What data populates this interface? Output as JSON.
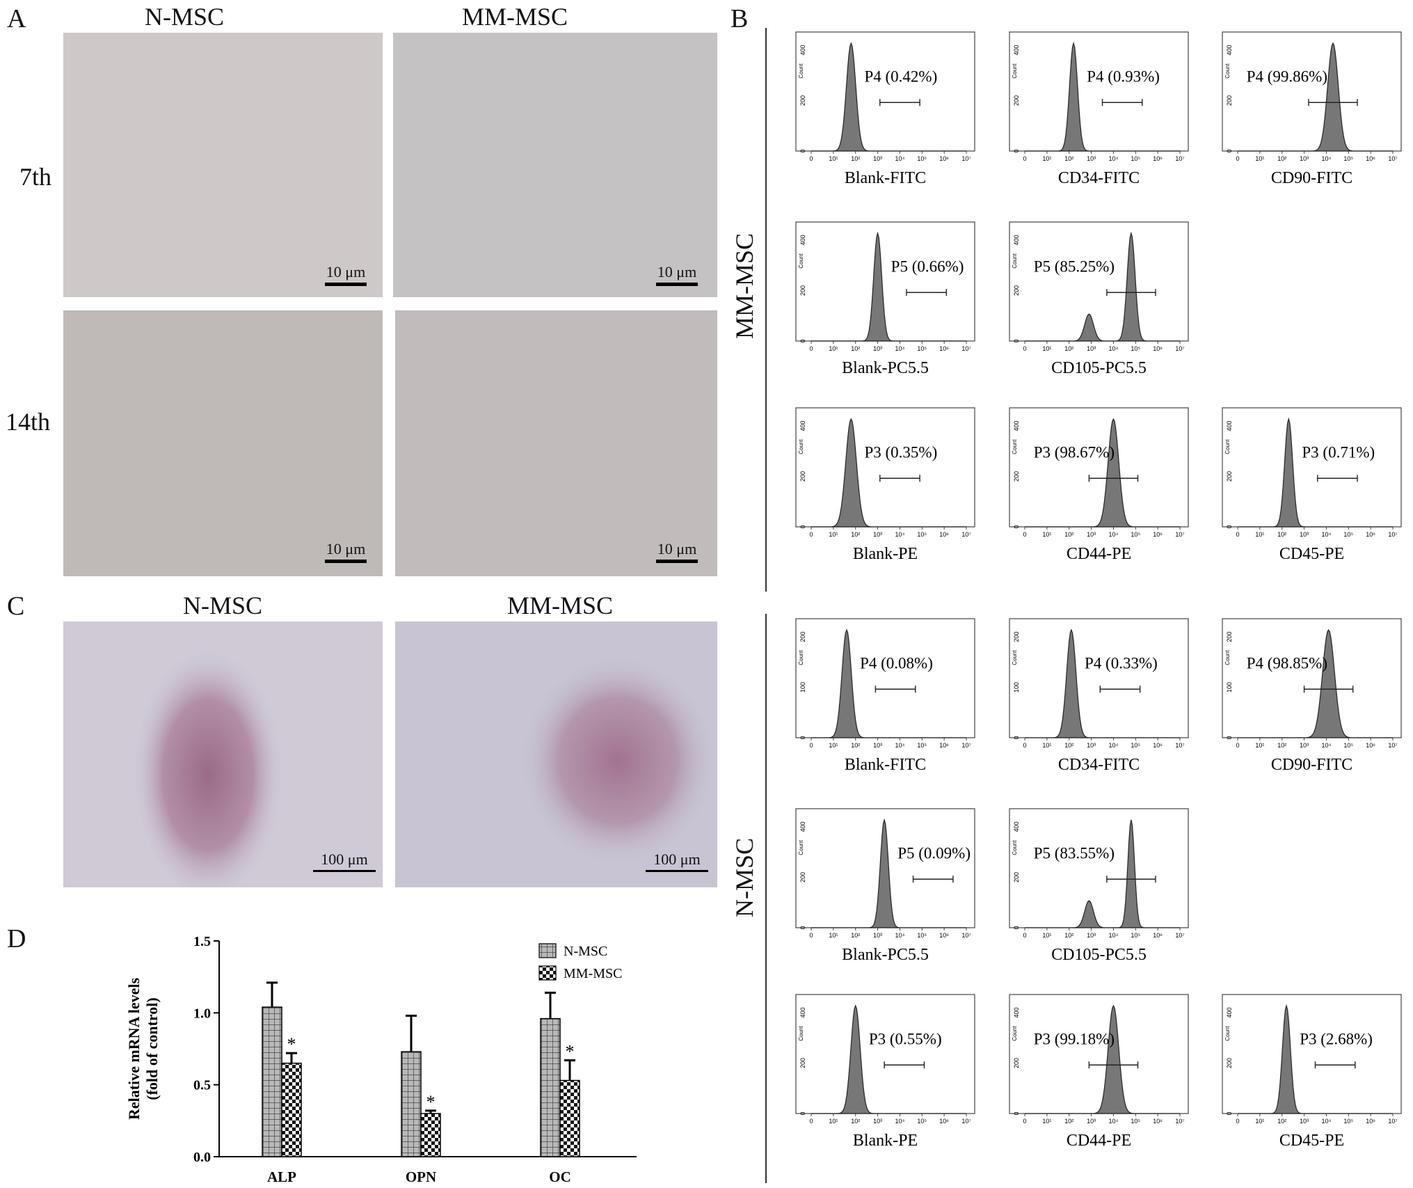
{
  "panels": {
    "A": {
      "letter": "A",
      "columns": [
        "N-MSC",
        "MM-MSC"
      ],
      "rows": [
        "7th",
        "14th"
      ],
      "scale_label": "10 μm"
    },
    "B": {
      "letter": "B",
      "groups": [
        {
          "label": "MM-MSC",
          "histograms": [
            {
              "name": "Blank-FITC",
              "gate": "P4 (0.42%)",
              "ymax": 400,
              "yticks": [
                "0",
                "200",
                "400"
              ],
              "peak": 1.8,
              "width": 0.35,
              "peak2": null
            },
            {
              "name": "CD34-FITC",
              "gate": "P4 (0.93%)",
              "ymax": 400,
              "yticks": [
                "0",
                "200",
                "400"
              ],
              "peak": 2.2,
              "width": 0.3,
              "peak2": null
            },
            {
              "name": "CD90-FITC",
              "gate": "P4 (99.86%)",
              "ymax": 400,
              "yticks": [
                "0",
                "200",
                "400"
              ],
              "peak": 4.3,
              "width": 0.4,
              "peak2": null
            },
            {
              "name": "Blank-PC5.5",
              "gate": "P5 (0.66%)",
              "ymax": 400,
              "yticks": [
                "0",
                "200",
                "400"
              ],
              "peak": 3.0,
              "width": 0.3,
              "peak2": null
            },
            {
              "name": "CD105-PC5.5",
              "gate": "P5 (85.25%)",
              "ymax": 400,
              "yticks": [
                "0",
                "200",
                "400"
              ],
              "peak": 4.8,
              "width": 0.3,
              "peak2": 2.9
            },
            {
              "name": "Blank-PE",
              "gate": "P3 (0.35%)",
              "ymax": 400,
              "yticks": [
                "0",
                "200",
                "400"
              ],
              "peak": 1.8,
              "width": 0.4,
              "peak2": null
            },
            {
              "name": "CD44-PE",
              "gate": "P3 (98.67%)",
              "ymax": 400,
              "yticks": [
                "0",
                "200",
                "400"
              ],
              "peak": 4.0,
              "width": 0.4,
              "peak2": null
            },
            {
              "name": "CD45-PE",
              "gate": "P3 (0.71%)",
              "ymax": 400,
              "yticks": [
                "0",
                "200",
                "400"
              ],
              "peak": 2.3,
              "width": 0.3,
              "peak2": null
            }
          ]
        },
        {
          "label": "N-MSC",
          "histograms": [
            {
              "name": "Blank-FITC",
              "gate": "P4 (0.08%)",
              "ymax": 200,
              "yticks": [
                "0",
                "100",
                "200"
              ],
              "peak": 1.6,
              "width": 0.35,
              "peak2": null
            },
            {
              "name": "CD34-FITC",
              "gate": "P4 (0.33%)",
              "ymax": 200,
              "yticks": [
                "0",
                "100",
                "200"
              ],
              "peak": 2.1,
              "width": 0.35,
              "peak2": null
            },
            {
              "name": "CD90-FITC",
              "gate": "P4 (98.85%)",
              "ymax": 200,
              "yticks": [
                "0",
                "100",
                "200"
              ],
              "peak": 4.1,
              "width": 0.45,
              "peak2": null
            },
            {
              "name": "Blank-PC5.5",
              "gate": "P5 (0.09%)",
              "ymax": 400,
              "yticks": [
                "0",
                "200",
                "400"
              ],
              "peak": 3.3,
              "width": 0.3,
              "peak2": null
            },
            {
              "name": "CD105-PC5.5",
              "gate": "P5 (83.55%)",
              "ymax": 400,
              "yticks": [
                "0",
                "200",
                "400"
              ],
              "peak": 4.8,
              "width": 0.25,
              "peak2": 2.9
            },
            {
              "name": "Blank-PE",
              "gate": "P3 (0.55%)",
              "ymax": 400,
              "yticks": [
                "0",
                "200",
                "400"
              ],
              "peak": 2.0,
              "width": 0.35,
              "peak2": null
            },
            {
              "name": "CD44-PE",
              "gate": "P3 (99.18%)",
              "ymax": 400,
              "yticks": [
                "0",
                "200",
                "400"
              ],
              "peak": 4.0,
              "width": 0.4,
              "peak2": null
            },
            {
              "name": "CD45-PE",
              "gate": "P3 (2.68%)",
              "ymax": 400,
              "yticks": [
                "0",
                "200",
                "400"
              ],
              "peak": 2.2,
              "width": 0.3,
              "peak2": null
            }
          ]
        }
      ],
      "x_axis_label": "",
      "y_axis_label": "Count",
      "x_ticks": [
        "0",
        "10¹",
        "10²",
        "10³",
        "10⁴",
        "10⁵",
        "10⁶",
        "10⁷"
      ]
    },
    "C": {
      "letter": "C",
      "columns": [
        "N-MSC",
        "MM-MSC"
      ],
      "scale_label": "100 μm"
    },
    "D": {
      "letter": "D"
    }
  },
  "chart_data": {
    "type": "bar",
    "categories": [
      "ALP",
      "OPN",
      "OC"
    ],
    "series": [
      {
        "name": "N-MSC",
        "values": [
          1.04,
          0.73,
          0.96
        ],
        "errors": [
          0.17,
          0.25,
          0.18
        ],
        "pattern": "grid",
        "significant": [
          false,
          false,
          false
        ]
      },
      {
        "name": "MM-MSC",
        "values": [
          0.65,
          0.3,
          0.53
        ],
        "errors": [
          0.07,
          0.02,
          0.14
        ],
        "pattern": "checker",
        "significant": [
          true,
          true,
          true
        ]
      }
    ],
    "ylabel": "Relative mRNA levels\n(fold of control)",
    "ylim": [
      0,
      1.5
    ],
    "yticks": [
      "0.0",
      "0.5",
      "1.0",
      "1.5"
    ],
    "significance_marker": "*",
    "legend_position": "right"
  }
}
